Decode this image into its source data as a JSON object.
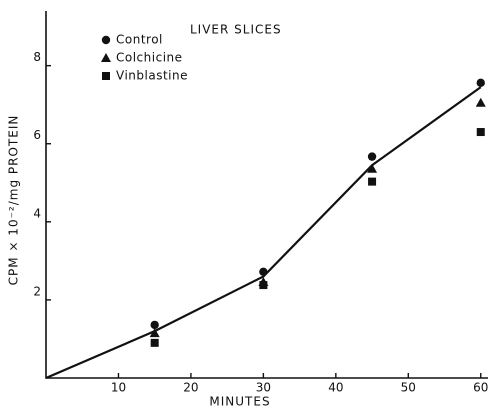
{
  "chart_data": {
    "type": "scatter",
    "title": "LIVER SLICES",
    "x_label": "MINUTES",
    "y_label": "CPM × 10⁻²/mg PROTEIN",
    "x": [
      15,
      30,
      45,
      60
    ],
    "series": [
      {
        "name": "Control",
        "color": "#111111",
        "marker": "circle",
        "values": [
          1.36,
          2.72,
          5.67,
          7.56
        ]
      },
      {
        "name": "Colchicine",
        "color": "#111111",
        "marker": "triangle",
        "values": [
          1.15,
          2.46,
          5.36,
          7.05
        ]
      },
      {
        "name": "Vinblastine",
        "color": "#111111",
        "marker": "square",
        "values": [
          0.9,
          2.38,
          5.03,
          6.3
        ]
      }
    ],
    "fit_line": {
      "x": [
        0,
        15,
        30,
        45,
        60
      ],
      "values": [
        0,
        1.2,
        2.6,
        5.45,
        7.45
      ]
    },
    "xlim": [
      0,
      61
    ],
    "ylim": [
      0,
      9.4
    ],
    "xticks": [
      10,
      20,
      30,
      40,
      50,
      60
    ],
    "yticks": [
      2,
      4,
      6,
      8
    ]
  }
}
